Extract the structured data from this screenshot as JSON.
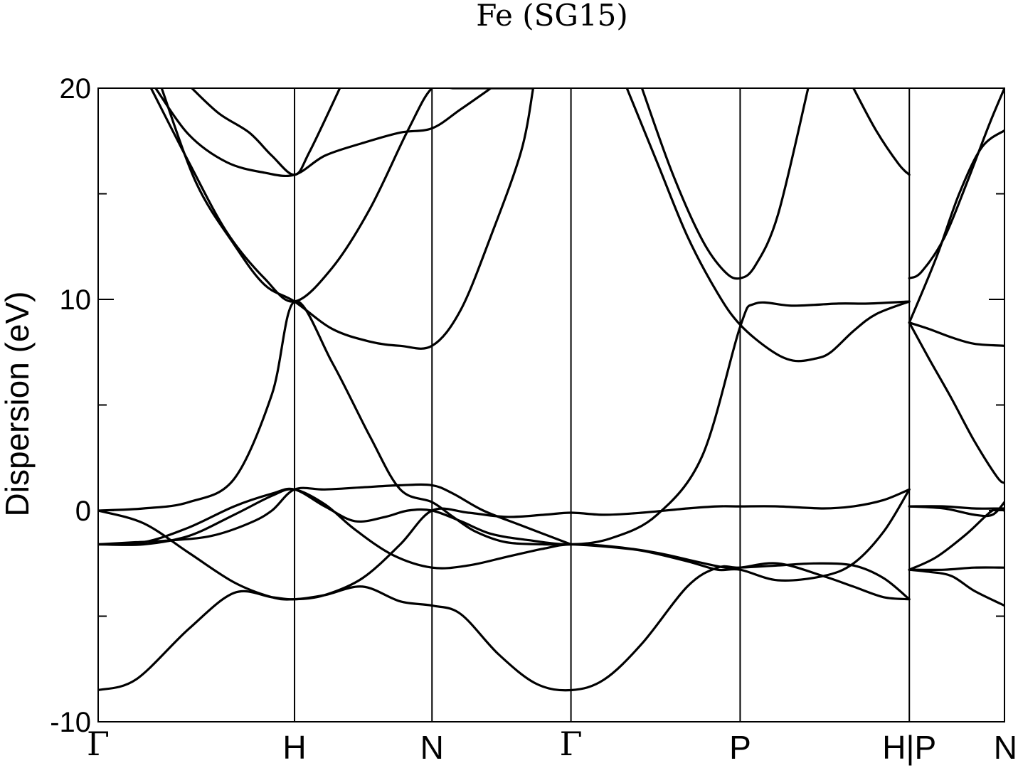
{
  "chart_data": {
    "type": "line",
    "title": "Fe (SG15)",
    "xlabel": "",
    "ylabel": "Dispersion (eV)",
    "ylim": [
      -10,
      20
    ],
    "xlim": [
      0,
      6.0
    ],
    "yticks": [
      "20",
      "10",
      "0",
      "-10"
    ],
    "yticks_values": [
      20,
      10,
      0,
      -10
    ],
    "yminor_ticks": [
      15,
      5,
      -5
    ],
    "grid": false,
    "legend": "none",
    "line_color": "#000000",
    "high_symmetry_points": [
      {
        "label": "Γ",
        "x": 0.0
      },
      {
        "label": "H",
        "x": 1.3
      },
      {
        "label": "N",
        "x": 2.21
      },
      {
        "label": "Γ",
        "x": 3.13
      },
      {
        "label": "P",
        "x": 4.25
      },
      {
        "label": "H|P",
        "x": 5.37
      },
      {
        "label": "N",
        "x": 6.0
      }
    ],
    "series": [
      {
        "x": [
          0,
          0.25,
          0.6,
          0.9,
          1.15,
          1.3,
          1.5,
          1.75,
          2.0,
          2.21,
          2.4,
          2.65,
          2.9,
          3.13,
          3.35,
          3.6,
          3.9,
          4.1,
          4.25,
          4.5,
          4.8,
          5.0,
          5.2,
          5.37
        ],
        "y": [
          -8.5,
          -8.0,
          -5.6,
          -3.9,
          -4.1,
          -4.2,
          -4.0,
          -3.6,
          -4.3,
          -4.5,
          -4.9,
          -6.8,
          -8.2,
          -8.5,
          -8.0,
          -6.3,
          -3.6,
          -2.7,
          -2.7,
          -2.5,
          -3.1,
          -3.6,
          -4.1,
          -4.2
        ]
      },
      {
        "x": [
          0,
          0.3,
          0.6,
          0.9,
          1.15,
          1.3,
          1.5,
          1.75,
          2.0,
          2.21,
          2.45,
          2.7,
          2.95,
          3.13,
          3.35,
          3.6,
          3.9,
          4.1,
          4.25,
          4.5,
          4.8,
          5.0,
          5.2,
          5.37
        ],
        "y": [
          0.0,
          -0.6,
          -2.0,
          -3.4,
          -4.1,
          -4.2,
          -4.0,
          -3.2,
          -1.6,
          0.0,
          -0.1,
          -0.3,
          -0.2,
          -0.1,
          -0.2,
          -0.1,
          0.1,
          0.2,
          0.2,
          0.2,
          0.1,
          0.2,
          0.5,
          1.0
        ]
      },
      {
        "x": [
          0,
          0.3,
          0.6,
          0.9,
          1.15,
          1.3,
          1.55,
          1.8,
          2.0,
          2.21,
          2.35,
          2.5,
          2.7,
          2.95,
          3.13,
          3.35,
          3.6,
          3.9,
          4.1,
          4.25,
          4.5,
          4.8,
          5.0,
          5.2,
          5.37
        ],
        "y": [
          0.0,
          0.1,
          0.4,
          1.5,
          5.5,
          9.9,
          7.0,
          3.5,
          1.0,
          0.4,
          -0.3,
          -1.0,
          -1.5,
          -1.6,
          -1.6,
          -1.7,
          -1.9,
          -2.4,
          -2.8,
          -2.8,
          -3.3,
          -3.1,
          -2.5,
          -1.0,
          1.0
        ]
      },
      {
        "x": [
          0,
          0.3,
          0.6,
          0.9,
          1.15,
          1.3,
          1.5,
          1.7,
          1.9,
          2.05,
          2.21,
          2.4,
          2.6,
          2.85,
          3.13,
          3.4,
          3.7,
          4.0,
          4.25,
          4.35,
          4.6,
          4.9,
          5.1,
          5.37
        ],
        "y": [
          -1.6,
          -1.5,
          -0.8,
          0.2,
          0.8,
          1.0,
          0.2,
          -0.5,
          -0.3,
          0.0,
          0.0,
          -0.5,
          -1.1,
          -1.4,
          -1.6,
          -1.3,
          -0.2,
          2.6,
          8.7,
          9.8,
          9.7,
          9.8,
          9.8,
          9.9
        ]
      },
      {
        "x": [
          0,
          0.3,
          0.6,
          0.9,
          1.15,
          1.3,
          1.5,
          1.7,
          1.95,
          2.21,
          2.45,
          2.7,
          2.95,
          3.13,
          3.4,
          3.7,
          3.95,
          4.15,
          4.25,
          4.5,
          4.75,
          5.0,
          5.2,
          5.37
        ],
        "y": [
          -1.6,
          -1.6,
          -1.2,
          -0.2,
          0.7,
          1.0,
          0.3,
          -0.9,
          -2.1,
          -2.7,
          -2.6,
          -2.2,
          -1.8,
          -1.6,
          -1.7,
          -2.0,
          -2.4,
          -2.7,
          -2.7,
          -2.6,
          -2.5,
          -2.6,
          -3.2,
          -4.2
        ]
      },
      {
        "x": [
          0,
          0.25,
          0.5,
          0.75,
          1.0,
          1.15,
          1.3,
          1.5,
          1.75,
          2.0,
          2.21,
          2.35,
          2.55,
          2.8,
          3.13
        ],
        "y": [
          -1.6,
          -1.5,
          -1.4,
          -1.2,
          -0.6,
          0.0,
          1.0,
          1.0,
          1.1,
          1.2,
          1.2,
          0.8,
          0.0,
          -0.7,
          -1.6
        ]
      },
      {
        "x": [
          0.35,
          0.6,
          0.85,
          1.1,
          1.3,
          1.55,
          1.8,
          2.05,
          2.21,
          2.35,
          2.5,
          2.75,
          2.88
        ],
        "y": [
          20.0,
          16.5,
          13.2,
          11.0,
          9.9,
          11.5,
          14.3,
          18.0,
          20.0,
          20.0,
          20.0,
          20.0,
          20.0
        ]
      },
      {
        "x": [
          0.42,
          0.65,
          0.9,
          1.1,
          1.3,
          1.55,
          1.8,
          2.0,
          2.21,
          2.4,
          2.6,
          2.8,
          2.88
        ],
        "y": [
          20.0,
          15.5,
          12.6,
          10.7,
          9.9,
          8.6,
          8.0,
          7.8,
          7.8,
          9.5,
          13.0,
          17.0,
          20.0
        ]
      },
      {
        "x": [
          0.38,
          0.6,
          0.85,
          1.1,
          1.3,
          1.5,
          1.75,
          2.0,
          2.21,
          2.4,
          2.6
        ],
        "y": [
          20.0,
          17.8,
          16.5,
          16.0,
          15.9,
          16.8,
          17.4,
          17.9,
          18.1,
          19.0,
          20.0
        ]
      },
      {
        "x": [
          0.62,
          0.8,
          1.0,
          1.15,
          1.3,
          1.4,
          1.6
        ],
        "y": [
          20.0,
          18.8,
          17.9,
          16.8,
          15.9,
          17.0,
          20.0
        ]
      },
      {
        "x": [
          3.5,
          3.7,
          3.9,
          4.1,
          4.25,
          4.45,
          4.6,
          4.75,
          4.85,
          5.0,
          5.15,
          5.37
        ],
        "y": [
          20.0,
          16.5,
          13.0,
          10.3,
          8.8,
          7.6,
          7.1,
          7.2,
          7.5,
          8.5,
          9.3,
          9.9
        ]
      },
      {
        "x": [
          3.6,
          3.8,
          4.0,
          4.15,
          4.25,
          4.35,
          4.5,
          4.7
        ],
        "y": [
          20.0,
          16.0,
          12.8,
          11.3,
          11.0,
          11.6,
          14.0,
          20.0
        ]
      },
      {
        "x": [
          5.0,
          5.15,
          5.3,
          5.37
        ],
        "y": [
          20.0,
          18.0,
          16.4,
          15.9
        ]
      },
      {
        "x": [
          5.37,
          5.5,
          5.65,
          5.8,
          6.0
        ],
        "y": [
          -2.8,
          -2.9,
          -3.1,
          -3.8,
          -4.5
        ]
      },
      {
        "x": [
          5.37,
          5.6,
          5.8,
          6.0
        ],
        "y": [
          -2.8,
          -2.8,
          -2.7,
          -2.7
        ]
      },
      {
        "x": [
          5.37,
          5.55,
          5.75,
          5.92,
          6.0
        ],
        "y": [
          -2.8,
          -2.2,
          -1.1,
          0.0,
          0.0
        ]
      },
      {
        "x": [
          5.37,
          5.6,
          5.8,
          6.0
        ],
        "y": [
          0.2,
          0.2,
          0.1,
          0.1
        ]
      },
      {
        "x": [
          5.37,
          5.6,
          5.8,
          5.92,
          6.0
        ],
        "y": [
          0.2,
          0.1,
          -0.2,
          -0.2,
          0.4
        ]
      },
      {
        "x": [
          5.37,
          5.5,
          5.65,
          5.8,
          6.0
        ],
        "y": [
          8.9,
          8.6,
          8.2,
          7.9,
          7.8
        ]
      },
      {
        "x": [
          5.37,
          5.5,
          5.65,
          5.8,
          5.95,
          6.0
        ],
        "y": [
          8.9,
          7.2,
          5.3,
          3.3,
          1.6,
          1.3
        ]
      },
      {
        "x": [
          5.37,
          5.55,
          5.7,
          5.85,
          6.0
        ],
        "y": [
          8.9,
          12.0,
          15.0,
          17.2,
          18.0
        ]
      },
      {
        "x": [
          5.37,
          5.45,
          5.6,
          5.75,
          5.9,
          6.0
        ],
        "y": [
          11.0,
          11.3,
          12.9,
          15.5,
          18.3,
          20.0
        ]
      }
    ]
  }
}
